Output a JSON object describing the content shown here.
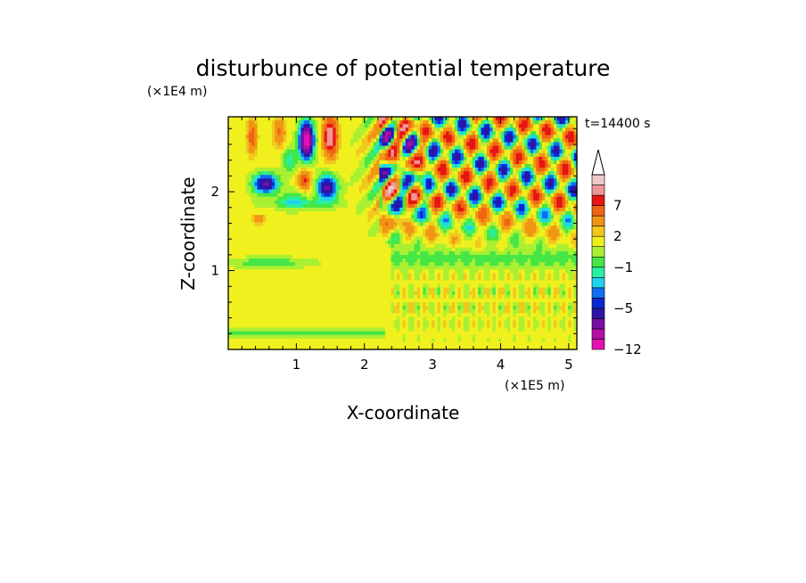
{
  "chart_data": {
    "type": "heatmap",
    "title": "disturbunce of potential temperature",
    "time_label": "t=14400 s",
    "xlabel": "X-coordinate",
    "ylabel": "Z-coordinate",
    "x_unit": "(×1E5 m)",
    "y_unit": "(×1E4 m)",
    "xlim": [
      0,
      5.12
    ],
    "ylim": [
      0,
      2.95
    ],
    "x_ticks": [
      1,
      2,
      3,
      4,
      5
    ],
    "y_ticks": [
      1,
      2
    ],
    "colorbar": {
      "labels": [
        {
          "text": "7",
          "value": 7
        },
        {
          "text": "2",
          "value": 2
        },
        {
          "text": "−1",
          "value": -1
        },
        {
          "text": "−5",
          "value": -5
        },
        {
          "text": "−12",
          "value": -12
        }
      ],
      "levels": [
        -12,
        -9,
        -7,
        -5,
        -4,
        -3,
        -2,
        -1,
        0,
        1,
        2,
        3,
        5,
        7,
        9,
        12
      ],
      "colors": [
        "#e60fb4",
        "#b40fa5",
        "#780fa5",
        "#2d14a5",
        "#0a28d2",
        "#0f6ef0",
        "#1ed2f0",
        "#28f0a0",
        "#46e646",
        "#aaf032",
        "#f0f01e",
        "#f0c81e",
        "#f09614",
        "#f06414",
        "#e61414",
        "#f09696",
        "#f0c8c8"
      ],
      "extend": "max"
    }
  }
}
